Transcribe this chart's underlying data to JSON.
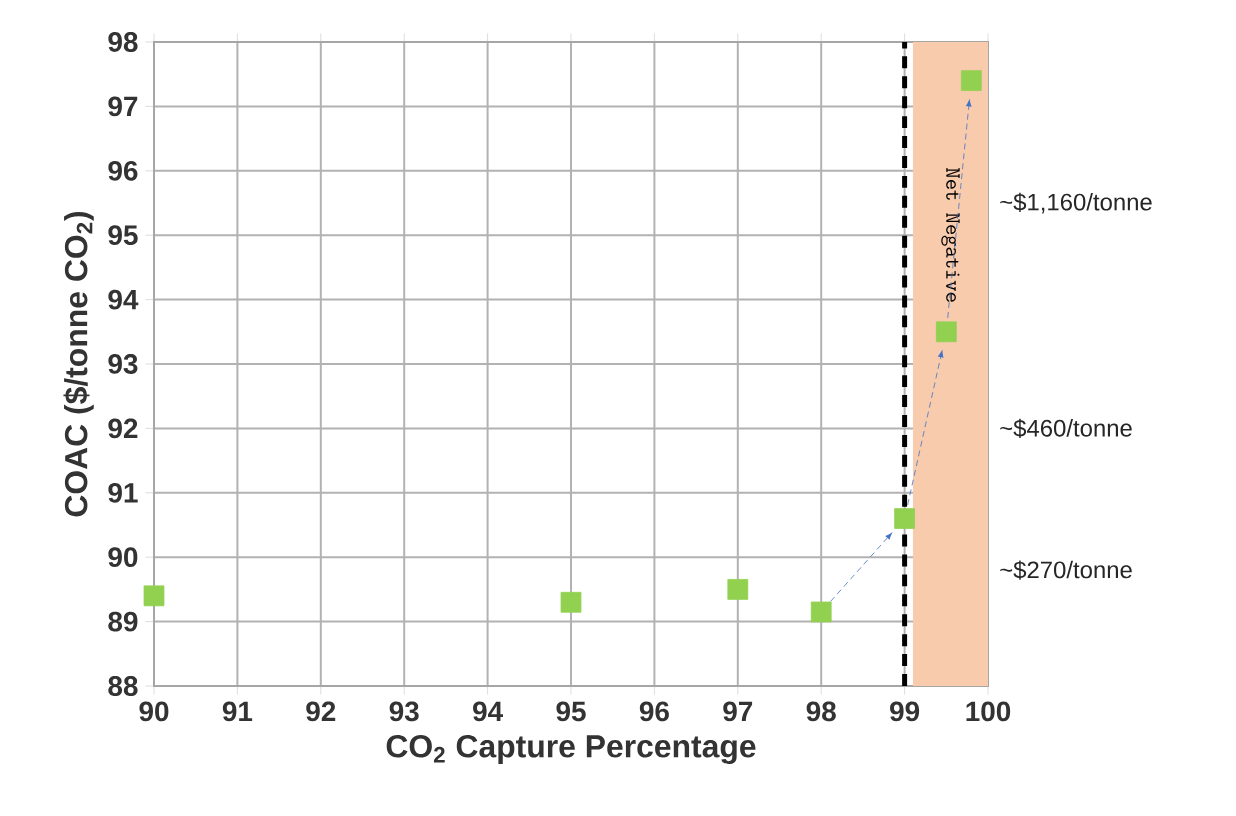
{
  "chart_data": {
    "type": "scatter",
    "xlabel": "CO$_{2}$ Capture Percentage",
    "ylabel": "COAC ($/tonne CO$_{2}$)",
    "x": [
      90,
      95,
      97,
      98,
      99,
      99.5,
      99.8
    ],
    "series": [
      {
        "color": "#92d050",
        "values": [
          89.4,
          89.3,
          89.5,
          89.15,
          90.6,
          93.5,
          97.4
        ]
      }
    ],
    "xlim": [
      90,
      100
    ],
    "xticks": [
      90,
      91,
      92,
      93,
      94,
      95,
      96,
      97,
      98,
      99,
      100
    ],
    "ylim": [
      88,
      98
    ],
    "yticks": [
      88,
      89,
      90,
      91,
      92,
      93,
      94,
      95,
      96,
      97,
      98
    ],
    "grid": true,
    "marker": "square",
    "ref_lines": [
      {
        "axis": "x",
        "value": 99,
        "color": "#000000",
        "line_style": "dashed"
      }
    ],
    "bands": [
      {
        "axis": "x",
        "from": 99.1,
        "to": 100,
        "label": "Net Negative",
        "color": "#f8cbad"
      }
    ],
    "annotations": [
      "~$1,160/tonne",
      "~$460/tonne",
      "~$270/tonne"
    ]
  }
}
